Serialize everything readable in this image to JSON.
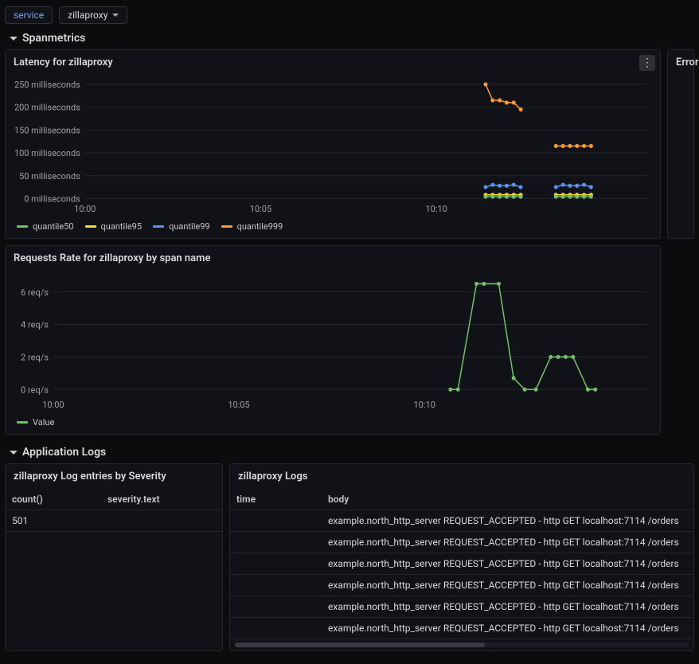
{
  "filters": {
    "service_label": "service",
    "service_value": "zillaproxy"
  },
  "sections": {
    "spanmetrics": "Spanmetrics",
    "app_logs": "Application Logs"
  },
  "latency_panel": {
    "title": "Latency for zillaproxy",
    "type": "line",
    "y_ticks": [
      "250 milliseconds",
      "200 milliseconds",
      "150 milliseconds",
      "100 milliseconds",
      "50 milliseconds",
      "0 milliseconds"
    ],
    "x_ticks": [
      "10:00",
      "10:05",
      "10:10"
    ],
    "legend": [
      {
        "label": "quantile50",
        "color": "#73bf69"
      },
      {
        "label": "quantile95",
        "color": "#fade2a"
      },
      {
        "label": "quantile99",
        "color": "#5794f2"
      },
      {
        "label": "quantile999",
        "color": "#ff9830"
      }
    ],
    "y_range": [
      0,
      260
    ],
    "x_range": [
      0,
      16
    ],
    "series": {
      "quantile999": {
        "color": "#ff9830",
        "segments": [
          [
            [
              11.4,
              250
            ],
            [
              11.6,
              215
            ],
            [
              11.8,
              215
            ],
            [
              12.0,
              210
            ],
            [
              12.2,
              210
            ],
            [
              12.4,
              195
            ]
          ],
          [
            [
              13.4,
              115
            ],
            [
              13.6,
              115
            ],
            [
              13.8,
              115
            ],
            [
              14.0,
              115
            ],
            [
              14.2,
              115
            ],
            [
              14.4,
              115
            ]
          ]
        ]
      },
      "quantile99": {
        "color": "#5794f2",
        "segments": [
          [
            [
              11.4,
              25
            ],
            [
              11.6,
              30
            ],
            [
              11.8,
              28
            ],
            [
              12.0,
              28
            ],
            [
              12.2,
              30
            ],
            [
              12.4,
              25
            ]
          ],
          [
            [
              13.4,
              25
            ],
            [
              13.6,
              30
            ],
            [
              13.8,
              28
            ],
            [
              14.0,
              28
            ],
            [
              14.2,
              30
            ],
            [
              14.4,
              25
            ]
          ]
        ]
      },
      "quantile95": {
        "color": "#fade2a",
        "segments": [
          [
            [
              11.4,
              8
            ],
            [
              11.6,
              8
            ],
            [
              11.8,
              8
            ],
            [
              12.0,
              8
            ],
            [
              12.2,
              8
            ],
            [
              12.4,
              8
            ]
          ],
          [
            [
              13.4,
              8
            ],
            [
              13.6,
              8
            ],
            [
              13.8,
              8
            ],
            [
              14.0,
              8
            ],
            [
              14.2,
              8
            ],
            [
              14.4,
              8
            ]
          ]
        ]
      },
      "quantile50": {
        "color": "#73bf69",
        "segments": [
          [
            [
              11.4,
              4
            ],
            [
              11.6,
              4
            ],
            [
              11.8,
              4
            ],
            [
              12.0,
              4
            ],
            [
              12.2,
              4
            ],
            [
              12.4,
              4
            ]
          ],
          [
            [
              13.4,
              4
            ],
            [
              13.6,
              4
            ],
            [
              13.8,
              4
            ],
            [
              14.0,
              4
            ],
            [
              14.2,
              4
            ],
            [
              14.4,
              4
            ]
          ]
        ]
      }
    }
  },
  "error_panel": {
    "title": "Error R"
  },
  "rate_panel": {
    "title": "Requests Rate for zillaproxy by span name",
    "type": "line",
    "y_ticks": [
      "6 req/s",
      "4 req/s",
      "2 req/s",
      "0 req/s"
    ],
    "x_ticks": [
      "10:00",
      "10:05",
      "10:10"
    ],
    "legend": [
      {
        "label": "Value",
        "color": "#73bf69"
      }
    ],
    "y_range": [
      -0.3,
      7
    ],
    "x_range": [
      0,
      16
    ],
    "series": {
      "value": {
        "color": "#73bf69",
        "points": [
          [
            10.7,
            0
          ],
          [
            10.9,
            0
          ],
          [
            11.4,
            6.5
          ],
          [
            11.6,
            6.5
          ],
          [
            12.0,
            6.5
          ],
          [
            12.4,
            0.7
          ],
          [
            12.7,
            0
          ],
          [
            13.0,
            0
          ],
          [
            13.4,
            2.0
          ],
          [
            13.6,
            2.0
          ],
          [
            13.8,
            2.0
          ],
          [
            14.0,
            2.0
          ],
          [
            14.4,
            0
          ],
          [
            14.6,
            0
          ]
        ]
      }
    }
  },
  "severity_panel": {
    "title": "zillaproxy Log entries by Severity",
    "columns": {
      "count": "count()",
      "severity": "severity.text"
    },
    "rows": [
      {
        "count": "501",
        "severity": ""
      }
    ]
  },
  "logs_panel": {
    "title": "zillaproxy Logs",
    "columns": {
      "time": "time",
      "body": "body"
    },
    "rows": [
      {
        "time": "",
        "body": "example.north_http_server REQUEST_ACCEPTED - http GET localhost:7114 /orders"
      },
      {
        "time": "",
        "body": "example.north_http_server REQUEST_ACCEPTED - http GET localhost:7114 /orders"
      },
      {
        "time": "",
        "body": "example.north_http_server REQUEST_ACCEPTED - http GET localhost:7114 /orders"
      },
      {
        "time": "",
        "body": "example.north_http_server REQUEST_ACCEPTED - http GET localhost:7114 /orders"
      },
      {
        "time": "",
        "body": "example.north_http_server REQUEST_ACCEPTED - http GET localhost:7114 /orders"
      },
      {
        "time": "",
        "body": "example.north_http_server REQUEST_ACCEPTED - http GET localhost:7114 /orders"
      }
    ]
  },
  "colors": {
    "bg": "#0b0c0e",
    "panel": "#111217",
    "border": "#24262b",
    "text": "#d8d9da",
    "muted": "#9da0a6",
    "accent": "#6e9fff"
  }
}
